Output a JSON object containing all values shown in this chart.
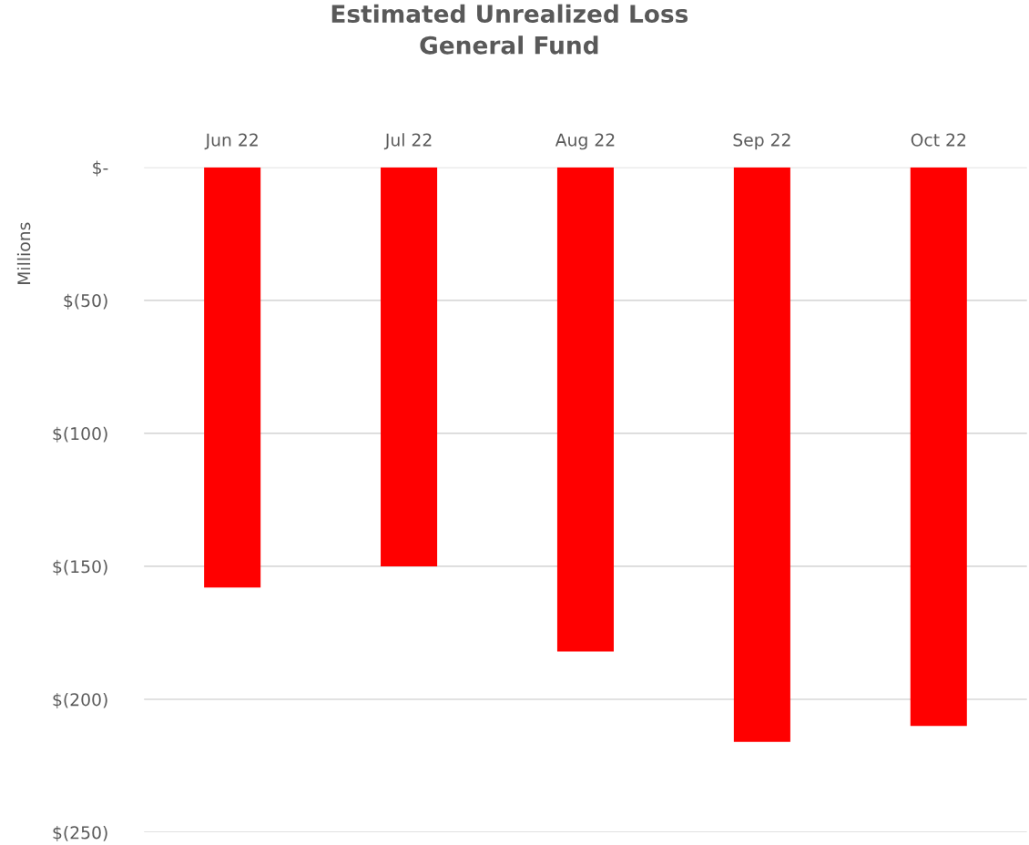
{
  "chart_data": {
    "type": "bar",
    "title": "Estimated Unrealized Loss\nGeneral Fund",
    "ylabel": "Millions",
    "categories": [
      "Jun 22",
      "Jul 22",
      "Aug 22",
      "Sep 22",
      "Oct 22"
    ],
    "values": [
      -158,
      -150,
      -182,
      -216,
      -210
    ],
    "color": "#ff0000",
    "ylim": [
      -250,
      0
    ],
    "yticks": [
      {
        "value": 0,
        "label": "$-"
      },
      {
        "value": -50,
        "label": "$(50)"
      },
      {
        "value": -100,
        "label": "$(100)"
      },
      {
        "value": -150,
        "label": "$(150)"
      },
      {
        "value": -200,
        "label": "$(200)"
      },
      {
        "value": -250,
        "label": "$(250)"
      }
    ],
    "grid": "y"
  }
}
